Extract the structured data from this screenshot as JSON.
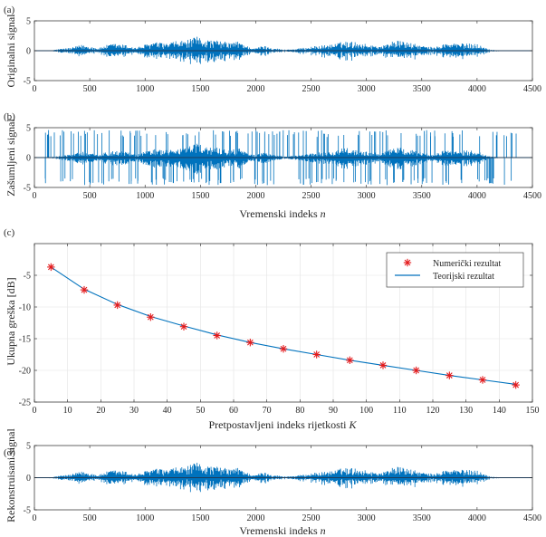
{
  "chart_data": [
    {
      "type": "line",
      "panel_label": "(a)",
      "ylabel": "Originalni signal",
      "xlabel": "",
      "xlim": [
        0,
        4500
      ],
      "ylim": [
        -5,
        5
      ],
      "xticks": [
        0,
        500,
        1000,
        1500,
        2000,
        2500,
        3000,
        3500,
        4000,
        4500
      ],
      "yticks": [
        -5,
        0,
        5
      ],
      "grid": false,
      "series": [
        {
          "name": "Originalni signal",
          "color": "#0072bd",
          "envelope": [
            [
              0,
              0.05
            ],
            [
              150,
              0.08
            ],
            [
              240,
              0.35
            ],
            [
              330,
              0.5
            ],
            [
              430,
              1.0
            ],
            [
              520,
              0.7
            ],
            [
              580,
              0.4
            ],
            [
              640,
              0.9
            ],
            [
              720,
              1.2
            ],
            [
              820,
              1.0
            ],
            [
              920,
              0.5
            ],
            [
              980,
              0.9
            ],
            [
              1080,
              1.5
            ],
            [
              1180,
              1.2
            ],
            [
              1280,
              1.6
            ],
            [
              1380,
              1.8
            ],
            [
              1480,
              2.4
            ],
            [
              1560,
              1.9
            ],
            [
              1660,
              1.7
            ],
            [
              1760,
              1.4
            ],
            [
              1860,
              1.6
            ],
            [
              1920,
              0.8
            ],
            [
              2000,
              0.4
            ],
            [
              2060,
              0.9
            ],
            [
              2150,
              0.5
            ],
            [
              2250,
              0.2
            ],
            [
              2350,
              0.3
            ],
            [
              2440,
              0.5
            ],
            [
              2500,
              0.7
            ],
            [
              2600,
              0.9
            ],
            [
              2700,
              1.1
            ],
            [
              2800,
              1.6
            ],
            [
              2900,
              1.5
            ],
            [
              2980,
              1.2
            ],
            [
              3060,
              0.9
            ],
            [
              3160,
              0.9
            ],
            [
              3250,
              1.8
            ],
            [
              3350,
              1.5
            ],
            [
              3450,
              1.1
            ],
            [
              3540,
              0.7
            ],
            [
              3620,
              0.6
            ],
            [
              3700,
              1.2
            ],
            [
              3800,
              1.3
            ],
            [
              3900,
              1.2
            ],
            [
              4000,
              1.2
            ],
            [
              4060,
              0.6
            ],
            [
              4120,
              0.2
            ],
            [
              4200,
              0.08
            ],
            [
              4500,
              0.05
            ]
          ]
        }
      ]
    },
    {
      "type": "line",
      "panel_label": "(b)",
      "ylabel": "Zašumljeni signal",
      "xlabel": "Vremenski indeks n",
      "xlabel_text": "Vremenski indeks",
      "xlabel_var": "n",
      "xlim": [
        0,
        4500
      ],
      "ylim": [
        -5,
        5
      ],
      "xticks": [
        0,
        500,
        1000,
        1500,
        2000,
        2500,
        3000,
        3500,
        4000,
        4500
      ],
      "yticks": [
        -5,
        0,
        5
      ],
      "grid": false,
      "impulse_amplitude": 4.6,
      "impulse_count": 260,
      "series": [
        {
          "name": "Zašumljeni signal",
          "color": "#0072bd"
        }
      ]
    },
    {
      "type": "scatter+line",
      "panel_label": "(c)",
      "xlabel": "Pretpostavljeni indeks rijetkosti K",
      "xlabel_text": "Pretpostavljeni indeks rijetkosti",
      "xlabel_var": "K",
      "ylabel": "Ukupna greška [dB]",
      "xlim": [
        0,
        150
      ],
      "ylim": [
        -25,
        0
      ],
      "xticks": [
        0,
        10,
        20,
        30,
        40,
        50,
        60,
        70,
        80,
        90,
        100,
        110,
        120,
        130,
        140,
        150
      ],
      "yticks": [
        -25,
        -20,
        -15,
        -10,
        -5
      ],
      "grid": true,
      "legend_position": "top-right",
      "x": [
        5,
        15,
        25,
        35,
        45,
        55,
        65,
        75,
        85,
        95,
        105,
        115,
        125,
        135,
        145
      ],
      "series": [
        {
          "name": "Numerički rezultat",
          "marker": "asterisk",
          "color": "#e41a1c",
          "values": [
            -3.7,
            -7.3,
            -9.7,
            -11.6,
            -13.1,
            -14.5,
            -15.6,
            -16.6,
            -17.5,
            -18.4,
            -19.2,
            -20.0,
            -20.8,
            -21.5,
            -22.3
          ]
        },
        {
          "name": "Teorijski rezultat",
          "marker": "line",
          "color": "#0072bd",
          "values": [
            -3.7,
            -7.2,
            -9.6,
            -11.5,
            -13.0,
            -14.4,
            -15.6,
            -16.6,
            -17.5,
            -18.4,
            -19.2,
            -20.0,
            -20.8,
            -21.5,
            -22.2
          ]
        }
      ]
    },
    {
      "type": "line",
      "panel_label": "(d)",
      "ylabel": "Rekonstruisani signal",
      "xlabel": "Vremenski indeks n",
      "xlabel_text": "Vremenski indeks",
      "xlabel_var": "n",
      "xlim": [
        0,
        4500
      ],
      "ylim": [
        -5,
        5
      ],
      "xticks": [
        0,
        500,
        1000,
        1500,
        2000,
        2500,
        3000,
        3500,
        4000,
        4500
      ],
      "yticks": [
        -5,
        0,
        5
      ],
      "grid": false,
      "series": [
        {
          "name": "Rekonstruisani signal",
          "color": "#0072bd",
          "same_as_panel": "(a)"
        }
      ]
    }
  ]
}
